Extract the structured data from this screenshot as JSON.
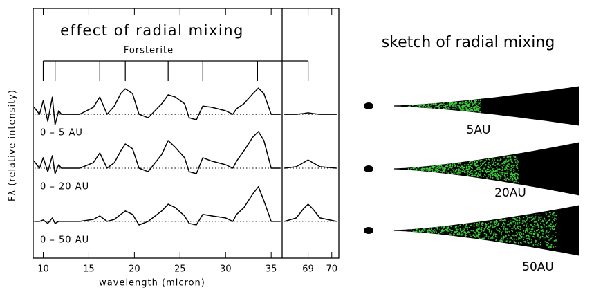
{
  "chart_data": {
    "type": "line",
    "title": "effect of radial mixing",
    "xlabel": "wavelength (micron)",
    "ylabel": "Fλ (relative intensity)",
    "xlim": [
      8.9,
      36.2
    ],
    "xticks": [
      10,
      15,
      20,
      25,
      30,
      35
    ],
    "x2lim": [
      67.9,
      70.3
    ],
    "x2ticks": [
      69,
      70
    ],
    "ylim": [
      0,
      10
    ],
    "x": [
      9,
      9.6,
      10,
      10.5,
      11,
      11.3,
      11.7,
      12,
      13,
      14,
      15.5,
      16.2,
      17,
      17.8,
      18.5,
      19,
      19.8,
      20.5,
      21.5,
      23,
      23.7,
      24.5,
      25.5,
      26,
      26.8,
      27.5,
      28.5,
      30,
      30.8,
      31.2,
      32,
      33,
      33.6,
      34.2,
      35,
      36
    ],
    "x2": [
      68.0,
      68.5,
      68.8,
      69.0,
      69.2,
      69.5,
      70.2
    ],
    "series": [
      {
        "name": "0 – 5 AU",
        "color": "#000000",
        "baseline": 5.76,
        "values": [
          6.04,
          5.76,
          6.31,
          5.48,
          6.45,
          5.34,
          5.9,
          5.76,
          5.76,
          5.76,
          6.04,
          6.45,
          5.76,
          6.09,
          6.59,
          6.78,
          6.59,
          5.76,
          5.62,
          6.18,
          6.54,
          6.45,
          6.18,
          5.62,
          5.54,
          6.09,
          6.04,
          5.9,
          5.76,
          5.98,
          6.18,
          6.59,
          6.81,
          6.59,
          5.76,
          5.76
        ],
        "values2": [
          5.76,
          5.76,
          5.79,
          5.82,
          5.79,
          5.76,
          5.76
        ]
      },
      {
        "name": "0 – 20 AU",
        "color": "#000000",
        "baseline": 3.6,
        "values": [
          3.88,
          3.6,
          4.02,
          3.46,
          4.1,
          3.38,
          3.74,
          3.6,
          3.6,
          3.6,
          3.82,
          4.21,
          3.6,
          3.82,
          4.29,
          4.57,
          4.38,
          3.6,
          3.46,
          4.15,
          4.71,
          4.43,
          4.02,
          3.46,
          3.38,
          4.02,
          3.88,
          3.74,
          3.6,
          3.88,
          4.29,
          4.85,
          5.07,
          4.71,
          3.6,
          3.6
        ],
        "values2": [
          3.6,
          3.66,
          3.82,
          3.93,
          3.82,
          3.66,
          3.6
        ]
      },
      {
        "name": "0 – 50 AU",
        "color": "#000000",
        "baseline": 1.47,
        "values": [
          1.47,
          1.47,
          1.53,
          1.39,
          1.61,
          1.39,
          1.47,
          1.47,
          1.47,
          1.47,
          1.55,
          1.69,
          1.47,
          1.55,
          1.75,
          1.89,
          1.75,
          1.33,
          1.47,
          1.89,
          2.16,
          2.02,
          1.69,
          1.39,
          1.33,
          1.75,
          1.69,
          1.61,
          1.47,
          1.75,
          2.02,
          2.58,
          2.86,
          2.3,
          1.47,
          1.47
        ],
        "values2": [
          1.47,
          1.61,
          1.97,
          2.16,
          1.97,
          1.61,
          1.47
        ]
      }
    ],
    "annotation": {
      "text": "Forsterite",
      "x": [
        10,
        11.3,
        16.2,
        19,
        23.7,
        27.5,
        33.5
      ],
      "x2": [
        69
      ]
    }
  },
  "sketch": {
    "title": "sketch of radial mixing",
    "labels": [
      "5AU",
      "20AU",
      "50AU"
    ]
  }
}
